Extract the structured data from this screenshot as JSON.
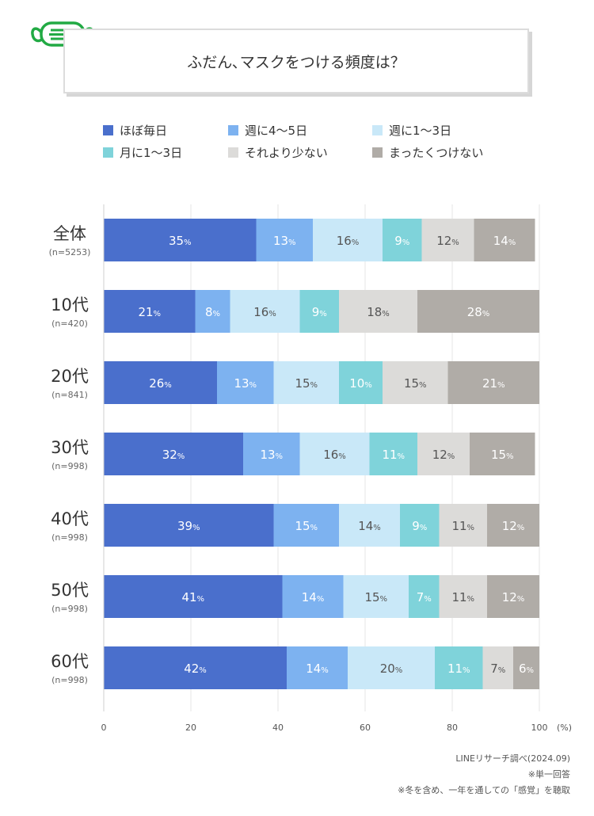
{
  "title": "ふだん､マスクをつける頻度は？",
  "icon": "mask-icon",
  "chart_data": {
    "type": "bar",
    "orientation": "horizontal-stacked",
    "categories": [
      "全体",
      "10代",
      "20代",
      "30代",
      "40代",
      "50代",
      "60代"
    ],
    "sample_sizes": [
      "(n=5253)",
      "(n=420)",
      "(n=841)",
      "(n=998)",
      "(n=998)",
      "(n=998)",
      "(n=998)"
    ],
    "series": [
      {
        "name": "ほぼ毎日",
        "color": "#4a6fcc",
        "label_color": "#ffffff",
        "values": [
          35,
          21,
          26,
          32,
          39,
          41,
          42
        ]
      },
      {
        "name": "週に4～5日",
        "color": "#7db2f0",
        "label_color": "#ffffff",
        "values": [
          13,
          8,
          13,
          13,
          15,
          14,
          14
        ]
      },
      {
        "name": "週に1～3日",
        "color": "#c9e8f8",
        "label_color": "#555555",
        "values": [
          16,
          16,
          15,
          16,
          14,
          15,
          20
        ]
      },
      {
        "name": "月に1～3日",
        "color": "#7fd3da",
        "label_color": "#ffffff",
        "values": [
          9,
          9,
          10,
          11,
          9,
          7,
          11
        ]
      },
      {
        "name": "それより少ない",
        "color": "#dcdbd9",
        "label_color": "#555555",
        "values": [
          12,
          18,
          15,
          12,
          11,
          11,
          7
        ]
      },
      {
        "name": "まったくつけない",
        "color": "#b0aca7",
        "label_color": "#ffffff",
        "values": [
          14,
          28,
          21,
          15,
          12,
          12,
          6
        ]
      }
    ],
    "percent_suffix": "%",
    "xlim": [
      0,
      100
    ],
    "xticks": [
      0,
      20,
      40,
      60,
      80,
      100
    ],
    "xunit": "(%)",
    "grid": true,
    "legend_position": "top"
  },
  "footnotes": [
    "LINEリサーチ調べ(2024.09)",
    "※単一回答",
    "※冬を含め、一年を通しての「感覚」を聴取"
  ]
}
